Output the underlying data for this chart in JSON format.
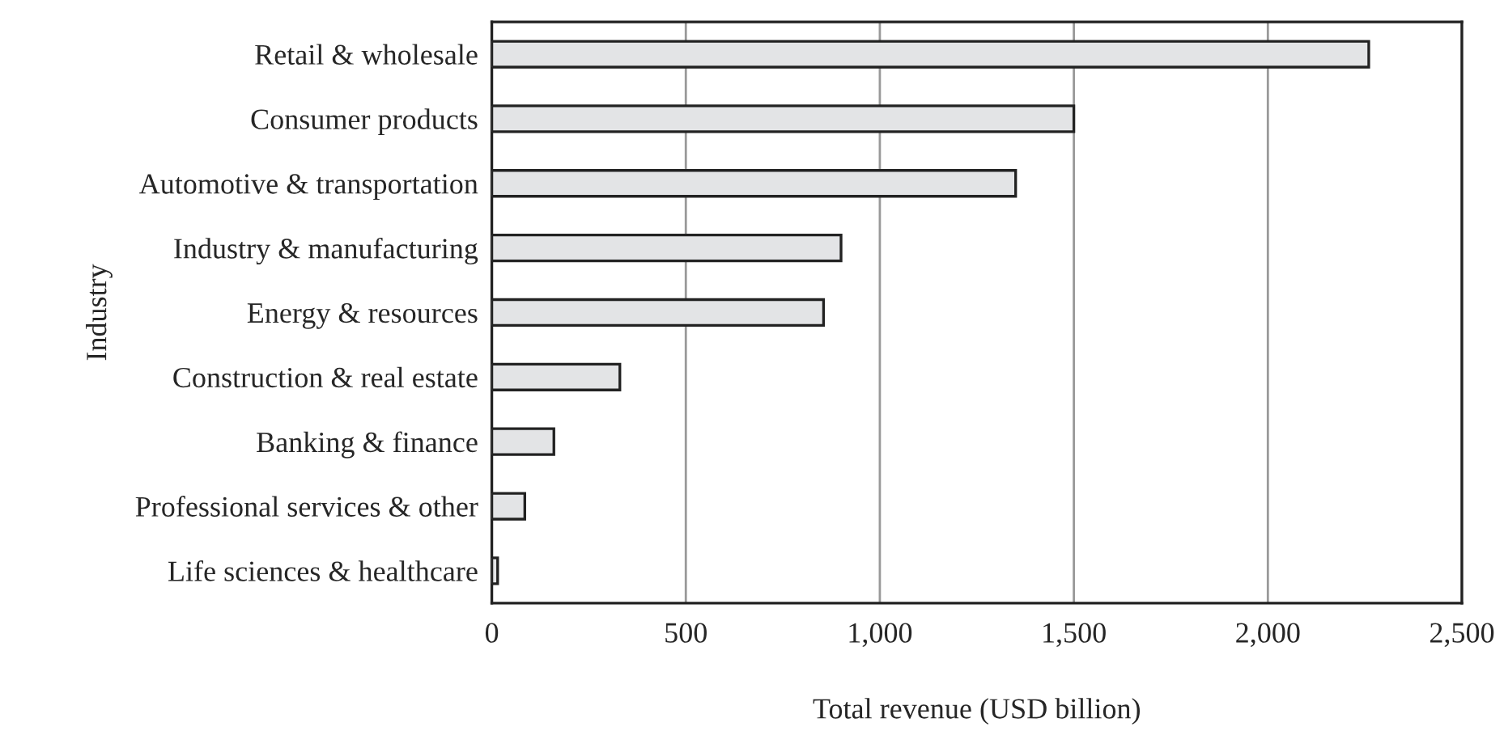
{
  "chart_data": {
    "type": "bar",
    "orientation": "horizontal",
    "xlabel": "Total revenue (USD billion)",
    "ylabel": "Industry",
    "categories": [
      "Retail & wholesale",
      "Consumer products",
      "Automotive & transportation",
      "Industry & manufacturing",
      "Energy & resources",
      "Construction & real estate",
      "Banking & finance",
      "Professional services & other",
      "Life sciences & healthcare"
    ],
    "values": [
      2260,
      1500,
      1350,
      900,
      855,
      330,
      160,
      85,
      15
    ],
    "color": "#e3e4e6",
    "xlim": [
      0,
      2500
    ],
    "xticks": [
      0,
      {
        "value": 500,
        "label": "500"
      },
      {
        "value": 1000,
        "label": "1,000"
      },
      {
        "value": 1500,
        "label": "1,500"
      },
      {
        "value": 2000,
        "label": "2,000"
      },
      {
        "value": 2500,
        "label": "2,500"
      }
    ],
    "grid": "x"
  }
}
